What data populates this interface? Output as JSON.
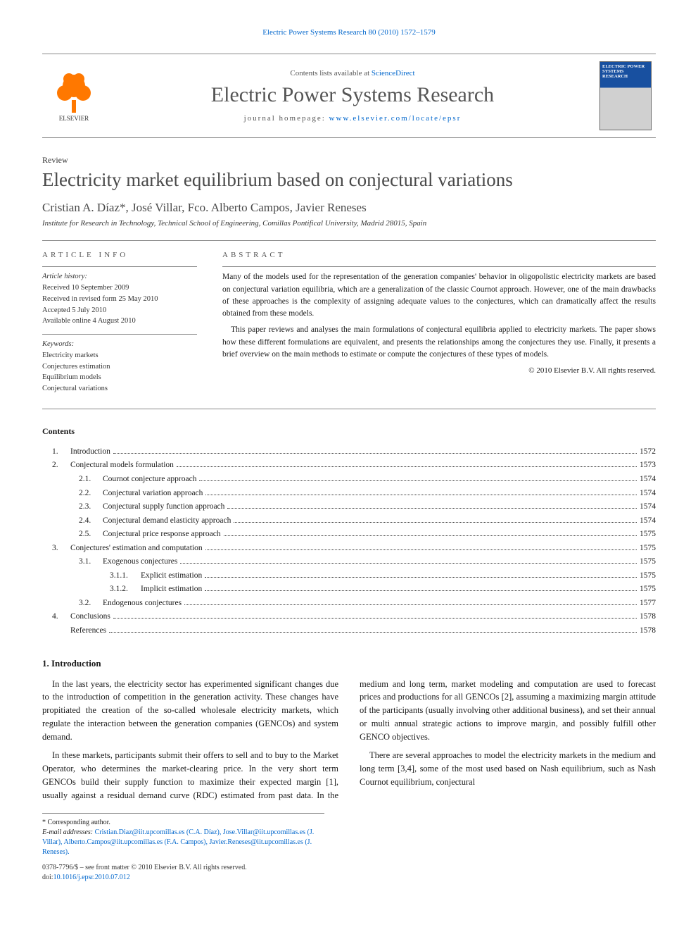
{
  "running_head": "Electric Power Systems Research 80 (2010) 1572–1579",
  "masthead": {
    "contents_prefix": "Contents lists available at ",
    "contents_link": "ScienceDirect",
    "journal_title": "Electric Power Systems Research",
    "homepage_prefix": "journal homepage: ",
    "homepage_url": "www.elsevier.com/locate/epsr",
    "publisher": "ELSEVIER",
    "cover_title": "ELECTRIC POWER SYSTEMS RESEARCH"
  },
  "article": {
    "type": "Review",
    "title": "Electricity market equilibrium based on conjectural variations",
    "authors": "Cristian A. Díaz*, José Villar, Fco. Alberto Campos, Javier Reneses",
    "affiliation": "Institute for Research in Technology, Technical School of Engineering, Comillas Pontifical University, Madrid 28015, Spain"
  },
  "info": {
    "head": "ARTICLE INFO",
    "history_label": "Article history:",
    "history": [
      "Received 10 September 2009",
      "Received in revised form 25 May 2010",
      "Accepted 5 July 2010",
      "Available online 4 August 2010"
    ],
    "keywords_label": "Keywords:",
    "keywords": [
      "Electricity markets",
      "Conjectures estimation",
      "Equilibrium models",
      "Conjectural variations"
    ]
  },
  "abstract": {
    "head": "ABSTRACT",
    "p1": "Many of the models used for the representation of the generation companies' behavior in oligopolistic electricity markets are based on conjectural variation equilibria, which are a generalization of the classic Cournot approach. However, one of the main drawbacks of these approaches is the complexity of assigning adequate values to the conjectures, which can dramatically affect the results obtained from these models.",
    "p2": "This paper reviews and analyses the main formulations of conjectural equilibria applied to electricity markets. The paper shows how these different formulations are equivalent, and presents the relationships among the conjectures they use. Finally, it presents a brief overview on the main methods to estimate or compute the conjectures of these types of models.",
    "copyright": "© 2010 Elsevier B.V. All rights reserved."
  },
  "contents": {
    "head": "Contents",
    "items": [
      {
        "level": 1,
        "num": "1.",
        "label": "Introduction",
        "page": "1572"
      },
      {
        "level": 1,
        "num": "2.",
        "label": "Conjectural models formulation",
        "page": "1573"
      },
      {
        "level": 2,
        "num": "2.1.",
        "label": "Cournot conjecture approach",
        "page": "1574"
      },
      {
        "level": 2,
        "num": "2.2.",
        "label": "Conjectural variation approach",
        "page": "1574"
      },
      {
        "level": 2,
        "num": "2.3.",
        "label": "Conjectural supply function approach",
        "page": "1574"
      },
      {
        "level": 2,
        "num": "2.4.",
        "label": "Conjectural demand elasticity approach",
        "page": "1574"
      },
      {
        "level": 2,
        "num": "2.5.",
        "label": "Conjectural price response approach",
        "page": "1575"
      },
      {
        "level": 1,
        "num": "3.",
        "label": "Conjectures' estimation and computation",
        "page": "1575"
      },
      {
        "level": 2,
        "num": "3.1.",
        "label": "Exogenous conjectures",
        "page": "1575"
      },
      {
        "level": 3,
        "num": "3.1.1.",
        "label": "Explicit estimation",
        "page": "1575"
      },
      {
        "level": 3,
        "num": "3.1.2.",
        "label": "Implicit estimation",
        "page": "1575"
      },
      {
        "level": 2,
        "num": "3.2.",
        "label": "Endogenous conjectures",
        "page": "1577"
      },
      {
        "level": 1,
        "num": "4.",
        "label": "Conclusions",
        "page": "1578"
      },
      {
        "level": 1,
        "num": "",
        "label": "References",
        "page": "1578"
      }
    ]
  },
  "section1": {
    "head": "1. Introduction",
    "p1": "In the last years, the electricity sector has experimented significant changes due to the introduction of competition in the generation activity. These changes have propitiated the creation of the so-called wholesale electricity markets, which regulate the interaction between the generation companies (GENCOs) and system demand.",
    "p2": "In these markets, participants submit their offers to sell and to buy to the Market Operator, who determines the market-clearing price. In the very short term GENCOs build their supply function to maximize their expected margin [1], usually against a residual demand curve (RDC) estimated from past data. In the medium and long term, market modeling and computation are used to forecast prices and productions for all GENCOs [2], assuming a maximizing margin attitude of the participants (usually involving other additional business), and set their annual or multi annual strategic actions to improve margin, and possibly fulfill other GENCO objectives.",
    "p3": "There are several approaches to model the electricity markets in the medium and long term [3,4], some of the most used based on Nash equilibrium, such as Nash Cournot equilibrium, conjectural"
  },
  "footnotes": {
    "corresponding": "* Corresponding author.",
    "emails_label": "E-mail addresses:",
    "emails": "Cristian.Diaz@iit.upcomillas.es (C.A. Díaz), Jose.Villar@iit.upcomillas.es (J. Villar), Alberto.Campos@iit.upcomillas.es (F.A. Campos), Javier.Reneses@iit.upcomillas.es (J. Reneses)."
  },
  "footer": {
    "line1": "0378-7796/$ – see front matter © 2010 Elsevier B.V. All rights reserved.",
    "doi_label": "doi:",
    "doi": "10.1016/j.epsr.2010.07.012"
  },
  "colors": {
    "link": "#0066cc",
    "elsevier_orange": "#ff7800",
    "text": "#1a1a1a",
    "muted": "#555555",
    "rule": "#888888",
    "cover_blue": "#1850a0"
  }
}
